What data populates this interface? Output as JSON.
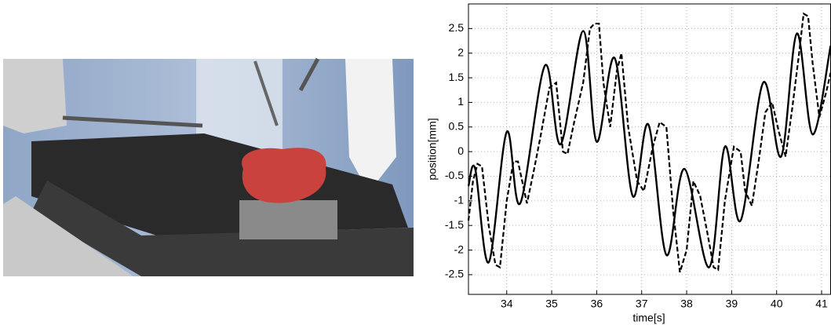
{
  "chart_data": {
    "type": "line",
    "xlabel": "time[s]",
    "ylabel": "position[mm]",
    "xlim": [
      33.15,
      41.2
    ],
    "ylim": [
      -2.9,
      3
    ],
    "xticks": [
      34,
      35,
      36,
      37,
      38,
      39,
      40,
      41
    ],
    "yticks": [
      -2.5,
      -2,
      -1.5,
      -1,
      -0.5,
      0,
      0.5,
      1,
      1.5,
      2,
      2.5
    ],
    "grid": true,
    "series": [
      {
        "color": "#000000",
        "linestyle": "solid",
        "x": [
          33.15,
          33.3,
          33.6,
          34.0,
          34.3,
          34.85,
          35.2,
          35.7,
          36.0,
          36.4,
          36.8,
          37.15,
          37.55,
          37.95,
          38.5,
          38.85,
          39.2,
          39.7,
          40.1,
          40.45,
          40.8,
          41.2
        ],
        "values": [
          -0.7,
          -0.35,
          -2.25,
          0.4,
          -1.05,
          1.75,
          0.15,
          2.45,
          0.2,
          1.9,
          -0.9,
          0.55,
          -2.1,
          -0.35,
          -2.35,
          0.1,
          -1.4,
          1.4,
          -0.1,
          2.4,
          0.35,
          2.15
        ]
      },
      {
        "color": "#000000",
        "linestyle": "dashed",
        "x": [
          33.15,
          33.25,
          33.35,
          33.45,
          33.6,
          33.75,
          33.85,
          34.0,
          34.15,
          34.25,
          34.45,
          34.6,
          34.75,
          34.95,
          35.1,
          35.25,
          35.35,
          35.5,
          35.7,
          35.85,
          35.95,
          36.05,
          36.15,
          36.3,
          36.45,
          36.55,
          36.7,
          36.9,
          37.05,
          37.25,
          37.4,
          37.55,
          37.7,
          37.85,
          38.0,
          38.15,
          38.3,
          38.45,
          38.6,
          38.7,
          38.85,
          39.05,
          39.2,
          39.3,
          39.45,
          39.6,
          39.75,
          39.9,
          40.05,
          40.2,
          40.35,
          40.5,
          40.6,
          40.7,
          40.8,
          40.95,
          41.1,
          41.2
        ],
        "values": [
          -1.4,
          -0.6,
          -0.25,
          -0.3,
          -1.5,
          -2.3,
          -2.35,
          -1.0,
          -0.2,
          -0.2,
          -1.05,
          -0.4,
          0.3,
          1.3,
          1.4,
          0.0,
          -0.05,
          0.6,
          1.4,
          2.5,
          2.6,
          2.6,
          1.4,
          0.5,
          1.65,
          2.0,
          0.5,
          -0.6,
          -0.8,
          0.1,
          0.6,
          0.5,
          -1.2,
          -2.45,
          -2.0,
          -0.6,
          -0.9,
          -1.6,
          -2.35,
          -2.4,
          -1.0,
          0.1,
          0.0,
          -0.8,
          -1.1,
          -0.2,
          0.8,
          1.0,
          0.4,
          -0.1,
          0.9,
          2.0,
          2.8,
          2.75,
          1.8,
          0.7,
          1.2,
          1.6
        ]
      }
    ]
  }
}
